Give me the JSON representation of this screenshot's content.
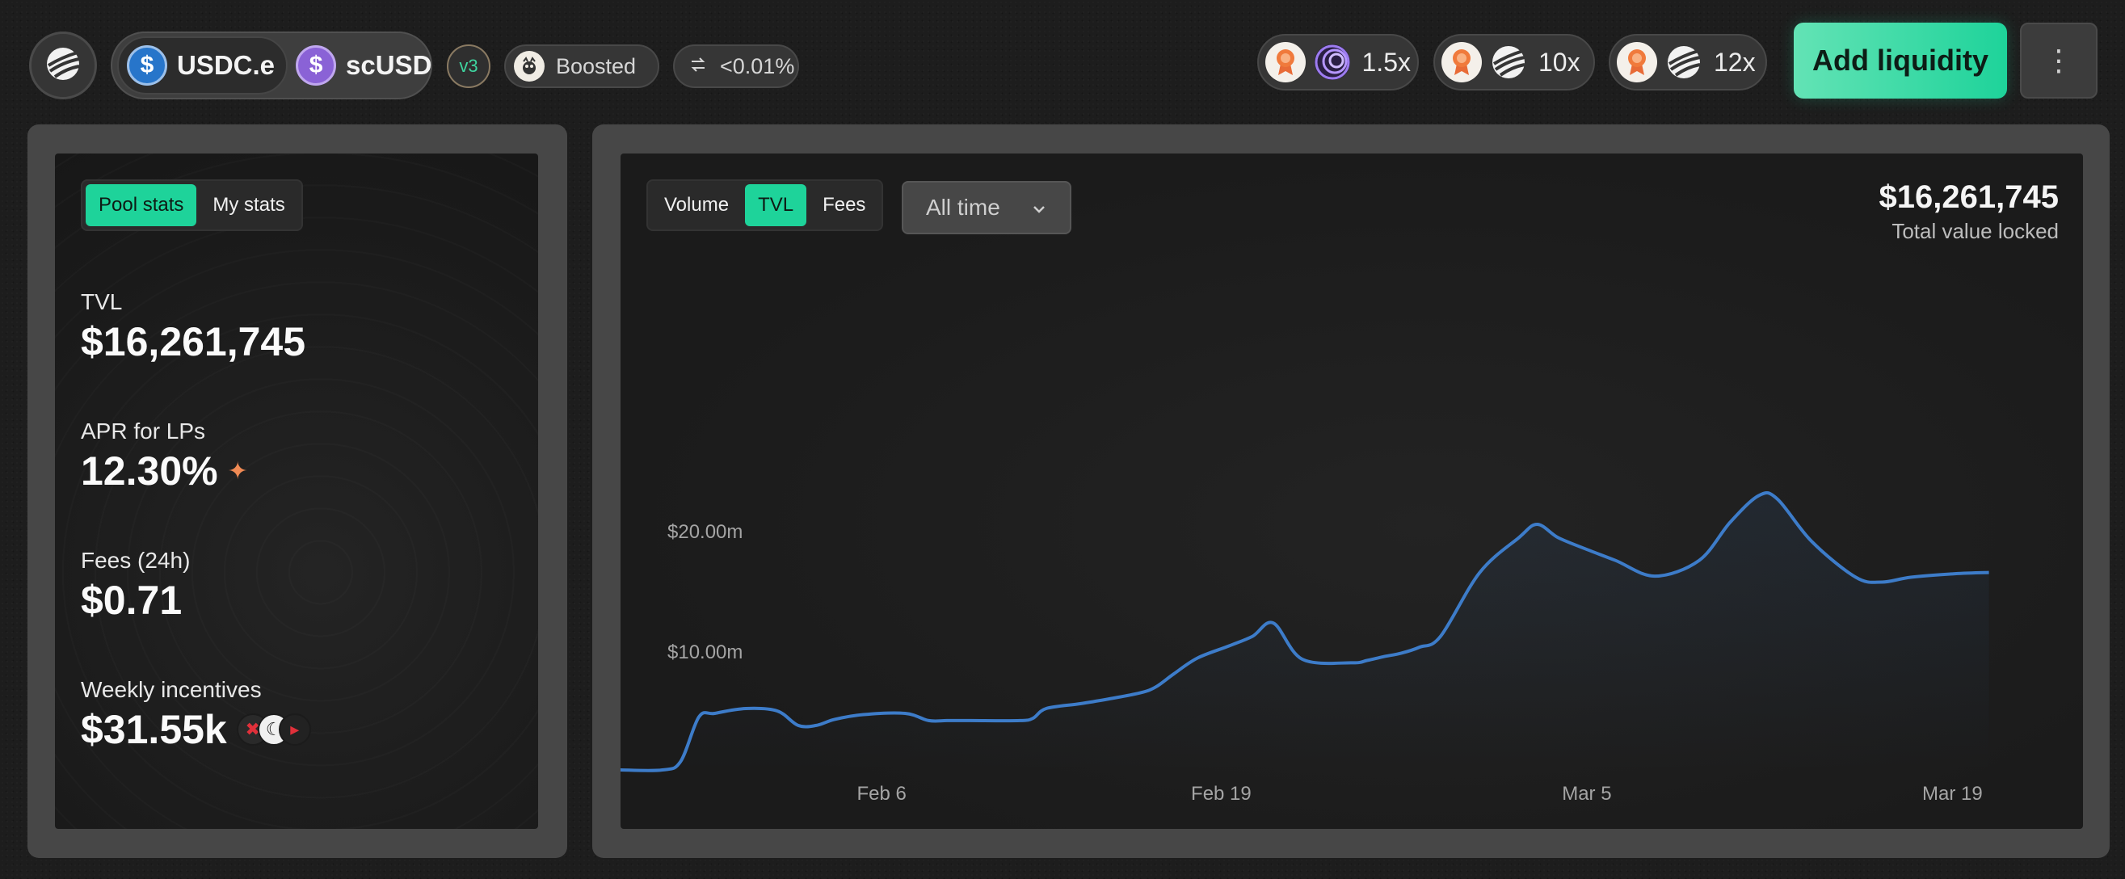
{
  "top_bar": {
    "tokens": [
      {
        "symbol": "USDC.e",
        "icon": "usdc-icon",
        "color": "#2775ca"
      },
      {
        "symbol": "scUSD",
        "icon": "scusd-icon",
        "color": "#8a62d6"
      }
    ],
    "version_badge": "v3",
    "boosted_label": "Boosted",
    "fee_label": "<0.01%",
    "rewards": [
      {
        "multiplier": "1.5x",
        "partner_icon": "spiral-icon"
      },
      {
        "multiplier": "10x",
        "partner_icon": "shadow-logo-icon"
      },
      {
        "multiplier": "12x",
        "partner_icon": "shadow-logo-icon"
      }
    ],
    "add_liquidity_label": "Add liquidity",
    "more_label": "⋮"
  },
  "stats_panel": {
    "tabs": [
      {
        "label": "Pool stats",
        "active": true
      },
      {
        "label": "My stats",
        "active": false
      }
    ],
    "tvl": {
      "label": "TVL",
      "value": "$16,261,745"
    },
    "apr": {
      "label": "APR for LPs",
      "value": "12.30%"
    },
    "fees": {
      "label": "Fees (24h)",
      "value": "$0.71"
    },
    "incentives": {
      "label": "Weekly incentives",
      "value": "$31.55k"
    }
  },
  "chart_panel": {
    "metric_tabs": [
      {
        "label": "Volume",
        "active": false
      },
      {
        "label": "TVL",
        "active": true
      },
      {
        "label": "Fees",
        "active": false
      }
    ],
    "range_label": "All time",
    "headline_value": "$16,261,745",
    "headline_caption": "Total value locked"
  },
  "colors": {
    "accent": "#1ed39a",
    "line": "#3d7cc9",
    "background": "#1d1d1d"
  },
  "chart_data": {
    "type": "line",
    "title": "",
    "xlabel": "",
    "ylabel": "",
    "x_ticks": [
      "Feb 6",
      "Feb 19",
      "Mar 5",
      "Mar 19"
    ],
    "y_ticks": [
      "$10.00m",
      "$20.00m"
    ],
    "y_tick_values": [
      10,
      20
    ],
    "ylim": [
      0,
      42
    ],
    "x_unit": "day",
    "x_tick_days": [
      6,
      19,
      33,
      47
    ],
    "xlim": [
      -4,
      52
    ],
    "series": [
      {
        "x": [
          -4.0,
          -2.4,
          -1.7,
          -1.0,
          -0.4,
          0.8,
          2.0,
          2.8,
          3.5,
          4.2,
          5.3,
          6.9,
          7.8,
          8.5,
          9.4,
          11.3,
          11.8,
          12.3,
          13.6,
          14.7,
          15.9,
          16.5,
          17.2,
          18.1,
          19.3,
          20.2,
          21.0,
          22.1,
          24.0,
          24.6,
          25.2,
          25.9,
          26.6,
          27.4,
          28.9,
          30.4,
          31.1,
          31.9,
          32.9,
          34.1,
          35.6,
          37.3,
          38.5,
          39.6,
          40.3,
          41.6,
          43.3,
          44.3,
          45.4,
          47.1,
          48.4
        ],
        "values": [
          0.2,
          0.2,
          0.9,
          4.6,
          4.9,
          5.3,
          5.1,
          3.9,
          3.9,
          4.4,
          4.8,
          4.9,
          4.3,
          4.3,
          4.3,
          4.3,
          4.5,
          5.3,
          5.7,
          6.1,
          6.6,
          7.1,
          8.2,
          9.5,
          10.5,
          11.3,
          12.4,
          9.4,
          9.1,
          9.3,
          9.6,
          9.9,
          10.4,
          11.3,
          16.6,
          19.5,
          20.6,
          19.5,
          18.6,
          17.6,
          16.3,
          17.6,
          20.8,
          23.0,
          22.7,
          19.2,
          16.2,
          15.8,
          16.2,
          16.5,
          16.6
        ]
      }
    ]
  }
}
